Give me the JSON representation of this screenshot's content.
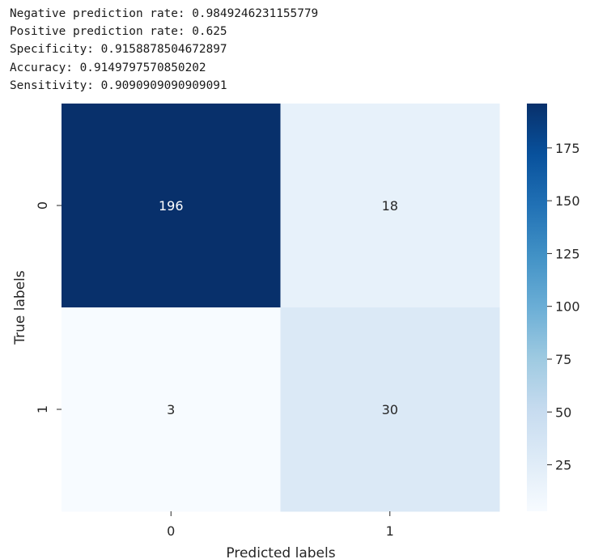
{
  "output_lines": [
    "Negative prediction rate: 0.9849246231155779",
    "Positive prediction rate: 0.625",
    "Specificity: 0.9158878504672897",
    "Accuracy: 0.9149797570850202",
    "Sensitivity: 0.9090909090909091"
  ],
  "chart_data": {
    "type": "heatmap",
    "title": "",
    "xlabel": "Predicted labels",
    "ylabel": "True labels",
    "x_categories": [
      "0",
      "1"
    ],
    "y_categories": [
      "0",
      "1"
    ],
    "values": [
      [
        196,
        18
      ],
      [
        3,
        30
      ]
    ],
    "colormap": "Blues",
    "colorbar": {
      "vmin": 3,
      "vmax": 196,
      "ticks": [
        25,
        50,
        75,
        100,
        125,
        150,
        175
      ],
      "colors": [
        "#f7fbff",
        "#deebf7",
        "#c6dbef",
        "#9ecae1",
        "#6baed6",
        "#4292c6",
        "#2171b5",
        "#08519c",
        "#08306b"
      ]
    },
    "annotation_colors": {
      "dark": "#ffffff",
      "light": "#262626"
    }
  }
}
